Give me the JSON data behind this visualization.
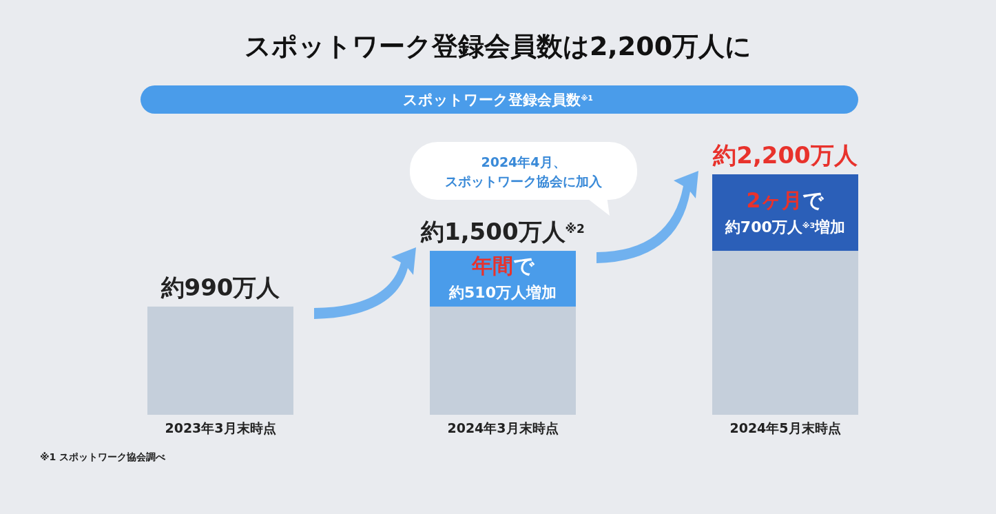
{
  "chart_data": {
    "type": "bar",
    "title": "スポットワーク登録会員数は2,200万人に",
    "subtitle": "スポットワーク登録会員数$^{※1}$",
    "categories": [
      "2023年3月末時点",
      "2024年3月末時点",
      "2024年5月末時点"
    ],
    "stacked": true,
    "tick_labels": "x",
    "series": [
      {
        "color": "#c5cfdb",
        "values": [
          990,
          990,
          1500
        ]
      },
      {
        "colors": [
          null,
          "#4a9cea",
          "#2b5fb8"
        ],
        "values": [
          null,
          510,
          700
        ],
        "value_labels": [
          null,
          "年間で約510万人増加",
          "2ヶ月で約700万人$^{※3}$増加"
        ]
      }
    ],
    "totals": [
      "約990万人",
      "約1,500万人$^{※2}$",
      "約2,200万人"
    ],
    "annotations": [
      "2024年4月、スポットワーク協会に加入",
      "※1 スポットワーク協会調べ"
    ]
  }
}
